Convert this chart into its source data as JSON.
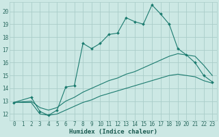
{
  "title": "",
  "xlabel": "Humidex (Indice chaleur)",
  "bg_color": "#cce8e4",
  "grid_color": "#aacdc9",
  "line_color": "#1a7a6e",
  "xlim": [
    -0.5,
    23.5
  ],
  "ylim": [
    11.5,
    20.7
  ],
  "xticks": [
    0,
    1,
    2,
    3,
    4,
    5,
    6,
    7,
    8,
    9,
    10,
    11,
    12,
    13,
    14,
    15,
    16,
    17,
    18,
    19,
    20,
    21,
    22,
    23
  ],
  "yticks": [
    12,
    13,
    14,
    15,
    16,
    17,
    18,
    19,
    20
  ],
  "line1_x": [
    0,
    2,
    3,
    4,
    5,
    6,
    7,
    8,
    9,
    10,
    11,
    12,
    13,
    14,
    15,
    16,
    17,
    18,
    19,
    20,
    21,
    22,
    23
  ],
  "line1_y": [
    12.9,
    13.3,
    12.2,
    11.9,
    12.3,
    14.1,
    14.2,
    17.5,
    17.1,
    17.5,
    18.2,
    18.3,
    19.5,
    19.2,
    19.0,
    20.5,
    19.8,
    19.0,
    17.1,
    16.6,
    16.0,
    15.0,
    14.5
  ],
  "line2_x": [
    0,
    2,
    3,
    4,
    5,
    6,
    7,
    8,
    9,
    10,
    11,
    12,
    13,
    14,
    15,
    16,
    17,
    18,
    19,
    20,
    21,
    22,
    23
  ],
  "line2_y": [
    12.9,
    13.0,
    12.5,
    12.3,
    12.5,
    13.0,
    13.3,
    13.7,
    14.0,
    14.3,
    14.6,
    14.8,
    15.1,
    15.3,
    15.6,
    15.9,
    16.2,
    16.5,
    16.7,
    16.6,
    16.5,
    15.8,
    15.0
  ],
  "line3_x": [
    0,
    2,
    3,
    4,
    5,
    6,
    7,
    8,
    9,
    10,
    11,
    12,
    13,
    14,
    15,
    16,
    17,
    18,
    19,
    20,
    21,
    22,
    23
  ],
  "line3_y": [
    12.9,
    12.9,
    12.0,
    11.9,
    12.0,
    12.3,
    12.6,
    12.9,
    13.1,
    13.4,
    13.6,
    13.8,
    14.0,
    14.2,
    14.4,
    14.6,
    14.8,
    15.0,
    15.1,
    15.0,
    14.9,
    14.6,
    14.4
  ]
}
